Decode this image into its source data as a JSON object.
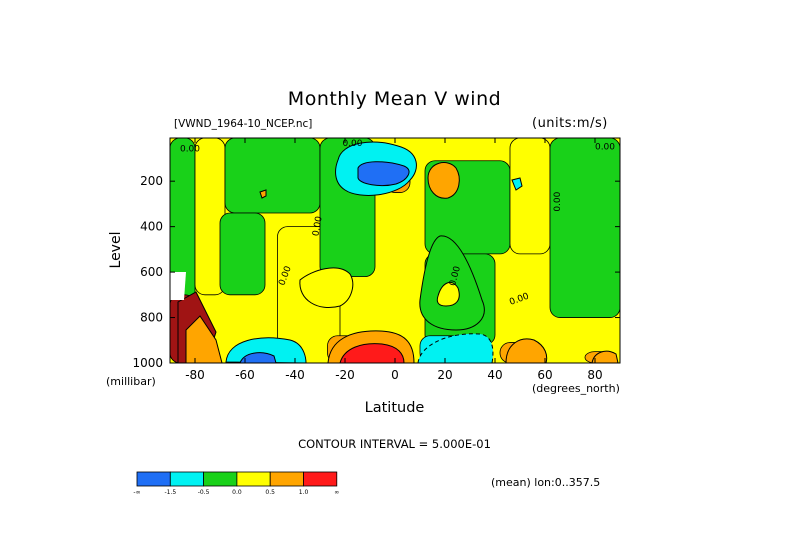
{
  "chart_data": {
    "type": "heatmap",
    "title": "Monthly Mean V wind",
    "dataset_label": "[VWND_1964-10_NCEP.nc]",
    "units_label": "(units:m/s)",
    "xlabel": "Latitude",
    "x_unit_label": "(degrees_north)",
    "ylabel": "Level",
    "y_unit_label": "(millibar)",
    "xlim": [
      -90,
      90
    ],
    "ylim": [
      1000,
      10
    ],
    "x_ticks": [
      -80,
      -60,
      -40,
      -20,
      0,
      20,
      40,
      60,
      80
    ],
    "y_ticks": [
      200,
      400,
      600,
      800,
      1000
    ],
    "contour_interval_label": "CONTOUR INTERVAL = 5.000E-01",
    "footer_label": "(mean) lon:0..357.5",
    "contour_labels": [
      "0.00",
      "0.00",
      "0.00",
      "0.00",
      "0.00",
      "0.00",
      "0.00",
      "0.00"
    ],
    "colorbar": {
      "colors": [
        "#1f6ff5",
        "#00f2f2",
        "#19d119",
        "#ffff00",
        "#ffa500",
        "#ff1a1a"
      ],
      "labels": [
        "-∞",
        "-1.5",
        "-0.5",
        "0.0",
        "0.5",
        "1.0",
        "∞"
      ]
    },
    "regions": [
      {
        "level": "green",
        "color": "#19d119",
        "lat": [
          -90,
          -80
        ],
        "lev": [
          10,
          1000
        ]
      },
      {
        "level": "yellow",
        "color": "#ffff00",
        "lat": [
          -80,
          -68
        ],
        "lev": [
          10,
          700
        ]
      },
      {
        "level": "green",
        "color": "#19d119",
        "lat": [
          -68,
          -30
        ],
        "lev": [
          10,
          340
        ]
      },
      {
        "level": "green",
        "color": "#19d119",
        "lat": [
          -70,
          -52
        ],
        "lev": [
          340,
          700
        ]
      },
      {
        "level": "yellow",
        "color": "#ffff00",
        "lat": [
          -47,
          -22
        ],
        "lev": [
          400,
          1000
        ]
      },
      {
        "level": "green",
        "color": "#19d119",
        "lat": [
          -30,
          -8
        ],
        "lev": [
          10,
          620
        ]
      },
      {
        "level": "blue",
        "color": "#1f6ff5",
        "lat": [
          -14,
          -4
        ],
        "lev": [
          150,
          190
        ]
      },
      {
        "level": "orange",
        "color": "#ffa500",
        "lat": [
          -4,
          6
        ],
        "lev": [
          130,
          250
        ]
      },
      {
        "level": "green",
        "color": "#19d119",
        "lat": [
          12,
          46
        ],
        "lev": [
          110,
          520
        ]
      },
      {
        "level": "green",
        "color": "#19d119",
        "lat": [
          12,
          40
        ],
        "lev": [
          520,
          920
        ]
      },
      {
        "level": "yellow",
        "color": "#ffff00",
        "lat": [
          46,
          62
        ],
        "lev": [
          10,
          520
        ]
      },
      {
        "level": "green",
        "color": "#19d119",
        "lat": [
          62,
          90
        ],
        "lev": [
          10,
          800
        ]
      },
      {
        "level": "brown",
        "color": "#a01414",
        "lat": [
          -90,
          -80
        ],
        "lev": [
          700,
          1000
        ]
      },
      {
        "level": "blue",
        "color": "#1f6ff5",
        "lat": [
          -62,
          -52
        ],
        "lev": [
          960,
          1000
        ]
      },
      {
        "level": "red",
        "color": "#ff1a1a",
        "lat": [
          -22,
          -2
        ],
        "lev": [
          940,
          1000
        ]
      },
      {
        "level": "orange",
        "color": "#ffa500",
        "lat": [
          -27,
          4
        ],
        "lev": [
          880,
          1000
        ]
      },
      {
        "level": "cyan",
        "color": "#00f2f2",
        "lat": [
          10,
          38
        ],
        "lev": [
          880,
          1000
        ]
      },
      {
        "level": "orange",
        "color": "#ffa500",
        "lat": [
          42,
          58
        ],
        "lev": [
          910,
          1000
        ]
      },
      {
        "level": "orange",
        "color": "#ffa500",
        "lat": [
          76,
          88
        ],
        "lev": [
          950,
          1000
        ]
      }
    ]
  }
}
